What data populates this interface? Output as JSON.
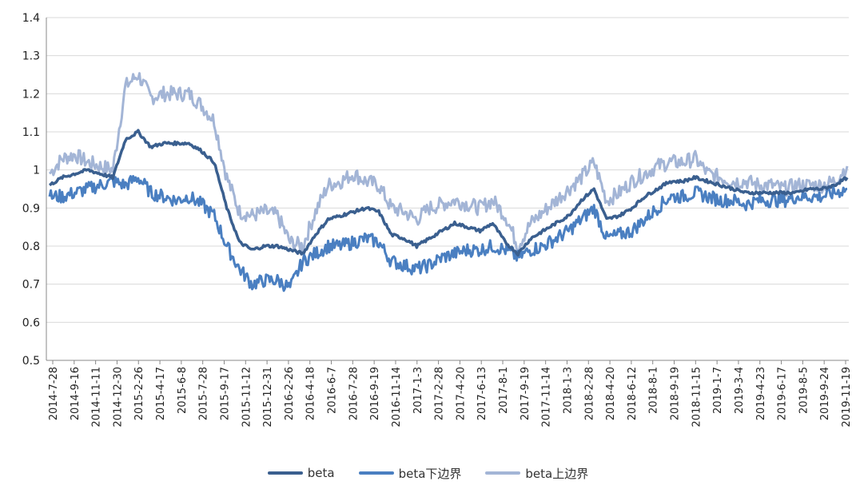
{
  "chart_data": {
    "type": "line",
    "title": "",
    "xlabel": "",
    "ylabel": "",
    "ylim": [
      0.5,
      1.4
    ],
    "yticks": [
      "0.5",
      "0.6",
      "0.7",
      "0.8",
      "0.9",
      "1",
      "1.1",
      "1.2",
      "1.3",
      "1.4"
    ],
    "grid": "horizontal",
    "legend_position": "bottom",
    "xtick_labels": [
      "2014-7-28",
      "2014-9-16",
      "2014-11-11",
      "2014-12-30",
      "2015-2-26",
      "2015-4-17",
      "2015-6-8",
      "2015-7-28",
      "2015-9-17",
      "2015-11-12",
      "2015-12-31",
      "2016-2-26",
      "2016-4-18",
      "2016-6-7",
      "2016-7-28",
      "2016-9-19",
      "2016-11-14",
      "2017-1-3",
      "2017-2-28",
      "2017-4-20",
      "2017-6-13",
      "2017-8-1",
      "2017-9-19",
      "2017-11-14",
      "2018-1-3",
      "2018-2-28",
      "2018-4-20",
      "2018-6-12",
      "2018-8-1",
      "2018-9-19",
      "2018-11-15",
      "2019-1-7",
      "2019-3-4",
      "2019-4-23",
      "2019-6-17",
      "2019-8-5",
      "2019-9-24",
      "2019-11-19"
    ],
    "series": [
      {
        "name": "beta",
        "color": "#3a5f8f",
        "values": [
          0.96,
          0.98,
          0.99,
          1.0,
          0.99,
          0.98,
          1.08,
          1.1,
          1.06,
          1.07,
          1.07,
          1.07,
          1.05,
          1.02,
          0.9,
          0.81,
          0.79,
          0.8,
          0.8,
          0.79,
          0.78,
          0.83,
          0.87,
          0.88,
          0.89,
          0.9,
          0.89,
          0.83,
          0.82,
          0.8,
          0.82,
          0.84,
          0.86,
          0.85,
          0.84,
          0.86,
          0.81,
          0.78,
          0.82,
          0.84,
          0.86,
          0.88,
          0.92,
          0.95,
          0.87,
          0.88,
          0.9,
          0.93,
          0.95,
          0.97,
          0.97,
          0.98,
          0.97,
          0.96,
          0.95,
          0.94,
          0.94,
          0.94,
          0.94,
          0.94,
          0.95,
          0.95,
          0.96,
          0.98
        ],
        "stroke_width": 3.5,
        "noise": 0.004
      },
      {
        "name": "beta下边界",
        "color": "#4a7fc1",
        "values": [
          0.93,
          0.93,
          0.94,
          0.95,
          0.96,
          0.97,
          0.96,
          0.98,
          0.94,
          0.93,
          0.92,
          0.93,
          0.91,
          0.88,
          0.8,
          0.74,
          0.7,
          0.71,
          0.71,
          0.69,
          0.76,
          0.78,
          0.8,
          0.8,
          0.81,
          0.82,
          0.81,
          0.76,
          0.75,
          0.74,
          0.75,
          0.77,
          0.78,
          0.79,
          0.79,
          0.8,
          0.79,
          0.77,
          0.79,
          0.8,
          0.82,
          0.84,
          0.87,
          0.9,
          0.82,
          0.83,
          0.84,
          0.87,
          0.9,
          0.93,
          0.93,
          0.94,
          0.93,
          0.92,
          0.92,
          0.91,
          0.92,
          0.92,
          0.92,
          0.93,
          0.93,
          0.93,
          0.94,
          0.95
        ],
        "stroke_width": 3,
        "noise": 0.018
      },
      {
        "name": "beta上边界",
        "color": "#a3b5d6",
        "values": [
          0.99,
          1.03,
          1.04,
          1.02,
          1.01,
          1.0,
          1.22,
          1.25,
          1.19,
          1.2,
          1.2,
          1.2,
          1.17,
          1.13,
          0.98,
          0.89,
          0.88,
          0.89,
          0.88,
          0.81,
          0.8,
          0.89,
          0.96,
          0.97,
          0.99,
          0.97,
          0.96,
          0.9,
          0.89,
          0.87,
          0.9,
          0.91,
          0.92,
          0.91,
          0.9,
          0.92,
          0.88,
          0.8,
          0.86,
          0.89,
          0.92,
          0.95,
          0.98,
          1.02,
          0.92,
          0.94,
          0.97,
          0.99,
          1.01,
          1.02,
          1.02,
          1.03,
          0.99,
          0.98,
          0.97,
          0.97,
          0.96,
          0.96,
          0.95,
          0.96,
          0.96,
          0.96,
          0.97,
          1.01
        ],
        "stroke_width": 3,
        "noise": 0.02
      }
    ]
  }
}
